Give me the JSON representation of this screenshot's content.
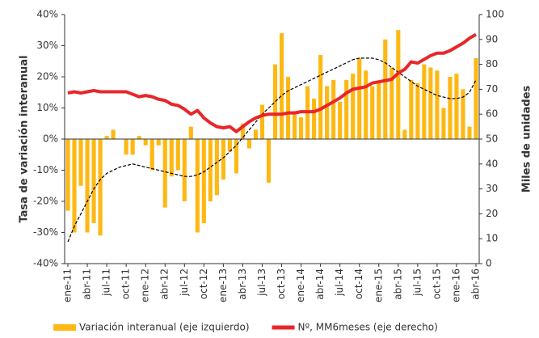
{
  "chart_data": {
    "type": "bar-line",
    "y_label": "Tasa de variación interanual",
    "y2_label": "Miles de unidades",
    "categories": [
      "ene-11",
      null,
      null,
      "abr-11",
      null,
      null,
      "jul-11",
      null,
      null,
      "oct-11",
      null,
      null,
      "ene-12",
      null,
      null,
      "abr-12",
      null,
      null,
      "jul-12",
      null,
      null,
      "oct-12",
      null,
      null,
      "ene-13",
      null,
      null,
      "abr-13",
      null,
      null,
      "jul-13",
      null,
      null,
      "oct-13",
      null,
      null,
      "ene-14",
      null,
      null,
      "abr-14",
      null,
      null,
      "jul-14",
      null,
      null,
      "oct-14",
      null,
      null,
      "ene-15",
      null,
      null,
      "abr-15",
      null,
      null,
      "jul-15",
      null,
      null,
      "oct-15",
      null,
      null,
      "ene-16",
      null,
      null,
      "abr-16"
    ],
    "series": [
      {
        "name": "Variación interanual (eje izquierdo)",
        "color": "#fdb813",
        "kind": "bar",
        "axis": "y",
        "values": [
          -23,
          -30,
          -15,
          -30,
          -27,
          -31,
          1,
          3,
          0,
          -5,
          -5,
          1,
          -2,
          -10,
          -2,
          -22,
          -12,
          -10,
          -20,
          4,
          -30,
          -27,
          -20,
          -18,
          -13,
          -4,
          -11,
          5,
          -3,
          3,
          11,
          -14,
          24,
          34,
          20,
          9,
          7,
          17,
          13,
          27,
          17,
          19,
          12,
          19,
          21,
          26,
          22,
          17,
          18,
          32,
          23,
          35,
          3,
          19,
          18,
          24,
          23,
          22,
          10,
          20,
          21,
          16,
          4,
          26
        ]
      },
      {
        "name": "Nº, MM6meses (eje derecho)",
        "color": "#e8262a",
        "kind": "line",
        "axis": "y2",
        "values": [
          68.5,
          69,
          68.5,
          69,
          69.5,
          69,
          69,
          69,
          69,
          69,
          68,
          67,
          67.5,
          67,
          66,
          65.5,
          64,
          63.5,
          62,
          60,
          61.5,
          58.5,
          56.5,
          55,
          54.5,
          55,
          53,
          55,
          57,
          58.5,
          59.5,
          60,
          60,
          60,
          60.5,
          60.5,
          61,
          61,
          61,
          62,
          63.5,
          65,
          66.5,
          68.5,
          70,
          70.5,
          71,
          72.5,
          73,
          73.5,
          74,
          76.5,
          78,
          81,
          80.5,
          82,
          83.5,
          84.5,
          84.5,
          85.5,
          87,
          88.5,
          90.5,
          92
        ]
      }
    ],
    "trend": {
      "color": "#000000",
      "dashed": true,
      "axis": "y",
      "values": [
        -33,
        -28,
        -24,
        -20,
        -16,
        -13,
        -11,
        -10,
        -9,
        -8.5,
        -8,
        -8.5,
        -9,
        -9.5,
        -10,
        -10.5,
        -11,
        -11.5,
        -12,
        -12,
        -11.5,
        -10.5,
        -9,
        -7.5,
        -6,
        -4,
        -2,
        0.5,
        3,
        5.5,
        8,
        10,
        12,
        14,
        15.5,
        16.5,
        17.5,
        18.5,
        19.5,
        20.5,
        21.5,
        22.5,
        23.5,
        24.5,
        25.5,
        26,
        26,
        26,
        25.5,
        24.5,
        23,
        21.5,
        20,
        18.5,
        17,
        16,
        15,
        14,
        13.5,
        13,
        13,
        13.5,
        15,
        19
      ]
    },
    "ylim": [
      -40,
      40
    ],
    "yticks": [
      {
        "value": -40,
        "label": "-40%"
      },
      {
        "value": -30,
        "label": "-30%"
      },
      {
        "value": -20,
        "label": "-20%"
      },
      {
        "value": -10,
        "label": "-10%"
      },
      {
        "value": 0,
        "label": "0%"
      },
      {
        "value": 10,
        "label": "10%"
      },
      {
        "value": 20,
        "label": "20%"
      },
      {
        "value": 30,
        "label": "30%"
      },
      {
        "value": 40,
        "label": "40%"
      }
    ],
    "y2lim": [
      0,
      100
    ],
    "y2ticks": [
      0,
      10,
      20,
      30,
      40,
      50,
      60,
      70,
      80,
      90,
      100
    ],
    "legend": "bottom"
  }
}
